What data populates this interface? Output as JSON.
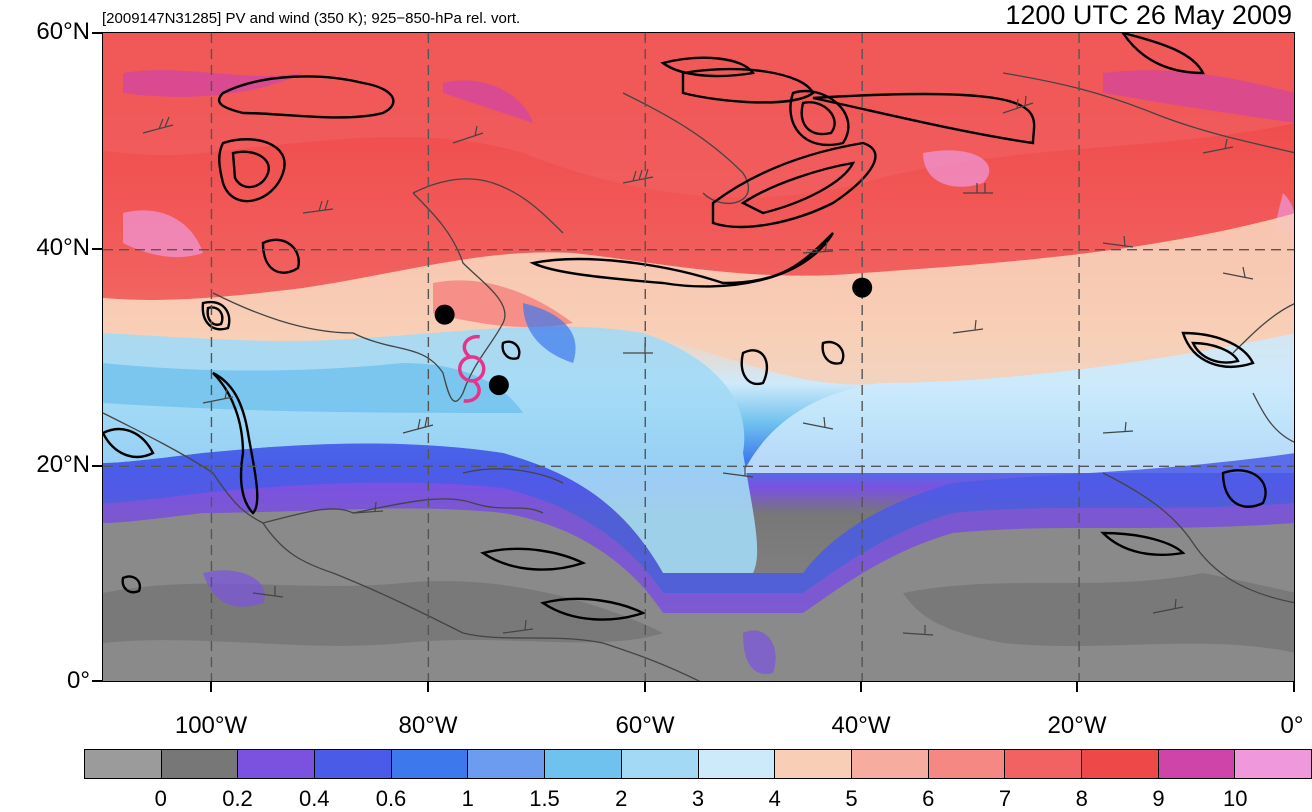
{
  "header": {
    "title": "[2009147N31285] PV and wind (350 K); 925−850-hPa rel. vort.",
    "time": "1200 UTC 26 May 2009"
  },
  "axes": {
    "lat_labels": [
      "60°N",
      "40°N",
      "20°N",
      "0°"
    ],
    "lon_labels": [
      "100°W",
      "80°W",
      "60°W",
      "40°W",
      "20°W",
      "0°"
    ]
  },
  "colorbar": {
    "labels": [
      "0",
      "0.2",
      "0.4",
      "0.6",
      "1",
      "1.5",
      "2",
      "3",
      "4",
      "5",
      "6",
      "7",
      "8",
      "9",
      "10"
    ],
    "colors": [
      "#9b9b9b",
      "#777777",
      "#7b52e0",
      "#4a5be8",
      "#3d78ec",
      "#6b9cf0",
      "#6fc1ee",
      "#a3d9f5",
      "#cdeafb",
      "#f8cfb6",
      "#f7aca0",
      "#f68884",
      "#f26262",
      "#ef4848",
      "#cf44a8",
      "#ef99dc"
    ]
  },
  "map": {
    "lon_range": [
      -110,
      0
    ],
    "lat_range": [
      0,
      60
    ],
    "grid_lons": [
      -100,
      -80,
      -60,
      -40,
      -20
    ],
    "grid_lats": [
      20,
      40
    ],
    "storm_symbol": {
      "lon": -76,
      "lat": 29
    },
    "dots": [
      {
        "lon": -78.5,
        "lat": 34
      },
      {
        "lon": -73.5,
        "lat": 27.5
      },
      {
        "lon": -40,
        "lat": 36.5
      }
    ]
  }
}
